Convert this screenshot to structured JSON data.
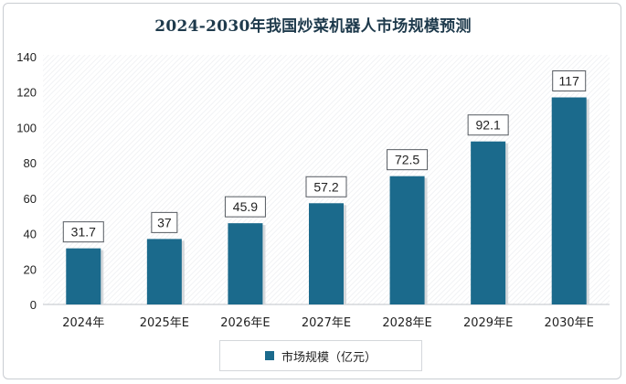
{
  "chart_data": {
    "type": "bar",
    "title": "2024-2030年我国炒菜机器人市场规模预测",
    "categories": [
      "2024年",
      "2025年E",
      "2026年E",
      "2027年E",
      "2028年E",
      "2029年E",
      "2030年E"
    ],
    "series": [
      {
        "name": "市场规模（亿元）",
        "values": [
          31.7,
          37,
          45.9,
          57.2,
          72.5,
          92.1,
          117
        ],
        "color": "#1b6a8c"
      }
    ],
    "ylim": [
      0,
      140
    ],
    "yticks": [
      0,
      20,
      40,
      60,
      80,
      100,
      120,
      140
    ],
    "grid": false,
    "legend_position": "bottom",
    "data_labels": [
      "31.7",
      "37",
      "45.9",
      "57.2",
      "72.5",
      "92.1",
      "117"
    ]
  }
}
